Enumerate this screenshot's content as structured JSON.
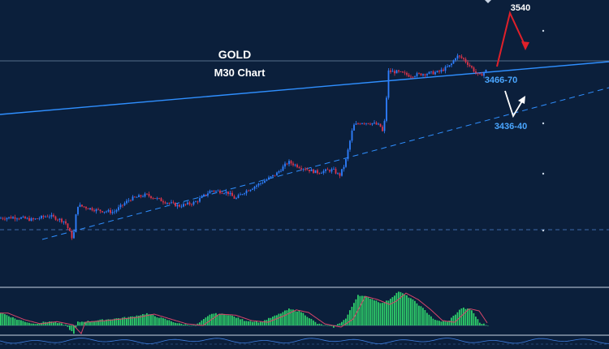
{
  "chart_data": {
    "type": "candlestick",
    "instrument": "GOLD",
    "timeframe": "M30 Chart",
    "colors": {
      "background": "#0b1f3b",
      "bull": "#2f7fff",
      "bear": "#e0344a",
      "trendline": "#2f8fff",
      "histogram": "#2ecc6a",
      "signal": "#d8466a",
      "arrow_up_scenario": "#e0202a",
      "arrow_down_scenario": "#ffffff",
      "grid": "#8aa0bc"
    },
    "annotations": {
      "target_high": "3540",
      "support_1": "3466-70",
      "support_2": "3436-40"
    },
    "price_axis": {
      "min": 3310,
      "max": 3545
    },
    "close_path": [
      [
        0,
        3330
      ],
      [
        20,
        3331
      ],
      [
        40,
        3328
      ],
      [
        60,
        3333
      ],
      [
        80,
        3326
      ],
      [
        90,
        3305
      ],
      [
        95,
        3345
      ],
      [
        120,
        3339
      ],
      [
        140,
        3337
      ],
      [
        160,
        3352
      ],
      [
        180,
        3357
      ],
      [
        200,
        3350
      ],
      [
        220,
        3344
      ],
      [
        240,
        3348
      ],
      [
        260,
        3362
      ],
      [
        280,
        3360
      ],
      [
        290,
        3352
      ],
      [
        300,
        3360
      ],
      [
        320,
        3370
      ],
      [
        340,
        3381
      ],
      [
        355,
        3395
      ],
      [
        370,
        3389
      ],
      [
        390,
        3383
      ],
      [
        410,
        3386
      ],
      [
        418,
        3379
      ],
      [
        425,
        3393
      ],
      [
        435,
        3437
      ],
      [
        445,
        3441
      ],
      [
        458,
        3440
      ],
      [
        468,
        3437
      ],
      [
        472,
        3428
      ],
      [
        475,
        3455
      ],
      [
        478,
        3500
      ],
      [
        490,
        3499
      ],
      [
        505,
        3495
      ],
      [
        520,
        3497
      ],
      [
        540,
        3499
      ],
      [
        555,
        3507
      ],
      [
        562,
        3518
      ],
      [
        570,
        3515
      ],
      [
        580,
        3505
      ],
      [
        590,
        3494
      ],
      [
        600,
        3502
      ]
    ],
    "indicator": {
      "type": "histogram",
      "envelope": [
        [
          0,
          0.38
        ],
        [
          20,
          0.18
        ],
        [
          40,
          0.05
        ],
        [
          60,
          0.12
        ],
        [
          80,
          0.02
        ],
        [
          90,
          -0.25
        ],
        [
          95,
          0.1
        ],
        [
          120,
          0.15
        ],
        [
          140,
          0.2
        ],
        [
          160,
          0.25
        ],
        [
          180,
          0.35
        ],
        [
          200,
          0.2
        ],
        [
          220,
          0.05
        ],
        [
          240,
          0.0
        ],
        [
          260,
          0.35
        ],
        [
          280,
          0.32
        ],
        [
          300,
          0.15
        ],
        [
          320,
          0.1
        ],
        [
          340,
          0.3
        ],
        [
          355,
          0.48
        ],
        [
          370,
          0.4
        ],
        [
          390,
          0.05
        ],
        [
          410,
          -0.05
        ],
        [
          425,
          0.2
        ],
        [
          440,
          0.9
        ],
        [
          455,
          0.8
        ],
        [
          470,
          0.65
        ],
        [
          478,
          0.75
        ],
        [
          490,
          1.0
        ],
        [
          505,
          0.8
        ],
        [
          520,
          0.5
        ],
        [
          535,
          0.15
        ],
        [
          550,
          0.1
        ],
        [
          568,
          0.52
        ],
        [
          580,
          0.45
        ],
        [
          590,
          0.08
        ],
        [
          600,
          0.0
        ]
      ]
    }
  }
}
